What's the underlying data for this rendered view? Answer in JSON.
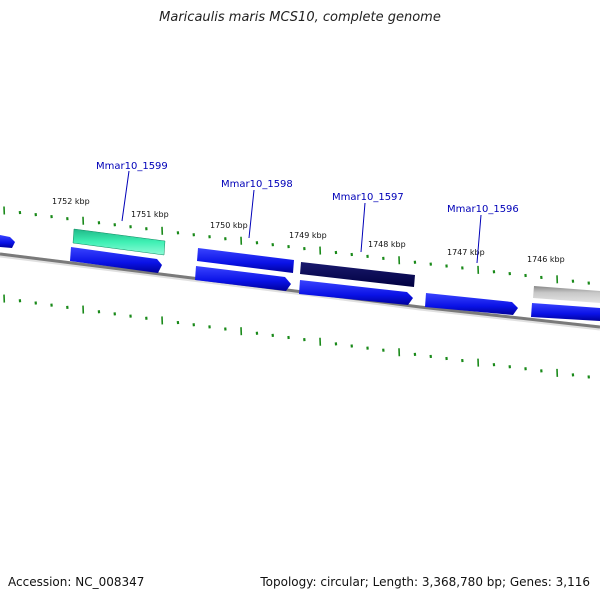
{
  "title": "Maricaulis maris MCS10, complete genome",
  "accession_text": "Accession: NC_008347",
  "summary_text": "Topology: circular; Length: 3,368,780 bp; Genes: 3,116",
  "colors": {
    "gene": "#0a12e6",
    "gene_shadow": "#00008a",
    "selected_gene": "#00005a",
    "green_gene": "#2ee8a8",
    "gray_feature": "#b8b8b8",
    "backbone": "#8a8a8a",
    "tick": "#1a8a1a",
    "label": "#0000b8"
  },
  "kbp_ticks": [
    "1752 kbp",
    "1751 kbp",
    "1750 kbp",
    "1749 kbp",
    "1748 kbp",
    "1747 kbp",
    "1746 kbp"
  ],
  "gene_labels": [
    "Mmar10_1599",
    "Mmar10_1598",
    "Mmar10_1597",
    "Mmar10_1596"
  ]
}
